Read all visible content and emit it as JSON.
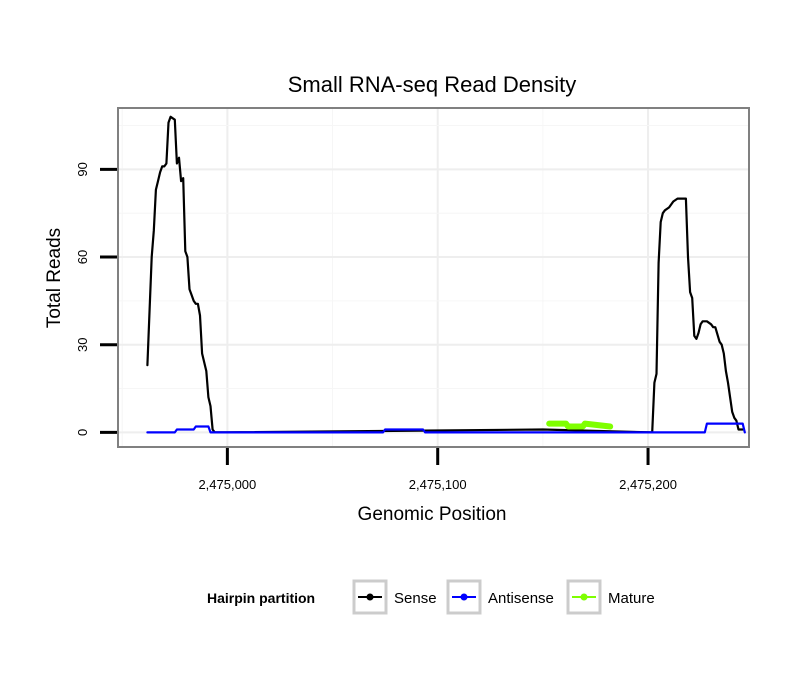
{
  "chart_data": {
    "type": "line",
    "title": "Small RNA-seq Read Density",
    "xlabel": "Genomic Position",
    "ylabel": "Total Reads",
    "xlim": [
      2474948,
      2475248
    ],
    "ylim": [
      -5,
      111
    ],
    "grid": true,
    "x_ticks": [
      {
        "value": 2475000,
        "label": "2,475,000"
      },
      {
        "value": 2475100,
        "label": "2,475,100"
      },
      {
        "value": 2475200,
        "label": "2,475,200"
      }
    ],
    "y_ticks": [
      {
        "value": 0,
        "label": "0"
      },
      {
        "value": 30,
        "label": "30"
      },
      {
        "value": 60,
        "label": "60"
      },
      {
        "value": 90,
        "label": "90"
      }
    ],
    "legend": {
      "title": "Hairpin partition",
      "placement": "bottom"
    },
    "series": [
      {
        "name": "Sense",
        "color": "#000000",
        "x": [
          2474962,
          2474963,
          2474964,
          2474965,
          2474966,
          2474967,
          2474968,
          2474969,
          2474970,
          2474971,
          2474972,
          2474973,
          2474975,
          2474976,
          2474977,
          2474978,
          2474979,
          2474980,
          2474981,
          2474982,
          2474983,
          2474984,
          2474985,
          2474986,
          2474987,
          2474988,
          2474990,
          2474991,
          2474992,
          2474993,
          2474994,
          2474995,
          2474996,
          2474997,
          2474998,
          2474999,
          2475150,
          2475202,
          2475203,
          2475204,
          2475205,
          2475206,
          2475207,
          2475208,
          2475210,
          2475212,
          2475214,
          2475216,
          2475218,
          2475219,
          2475220,
          2475221,
          2475222,
          2475223,
          2475224,
          2475225,
          2475226,
          2475228,
          2475230,
          2475231,
          2475232,
          2475234,
          2475235,
          2475236,
          2475237,
          2475238,
          2475239,
          2475240,
          2475241,
          2475242,
          2475243,
          2475244,
          2475245
        ],
        "values": [
          23,
          42,
          60,
          69,
          83,
          86,
          89,
          91,
          91,
          92,
          106,
          108,
          107,
          92,
          94,
          86,
          87,
          62,
          60,
          49,
          47,
          45,
          44,
          44,
          40,
          27,
          21,
          12,
          9,
          1,
          0,
          0,
          0,
          0,
          0,
          0,
          1,
          0,
          17,
          20,
          58,
          72,
          75,
          76,
          77,
          79,
          80,
          80,
          80,
          60,
          48,
          46,
          33,
          32,
          34,
          37,
          38,
          38,
          37,
          36,
          36,
          31,
          30,
          27,
          21,
          17,
          12,
          7,
          5,
          4,
          1,
          1,
          1
        ]
      },
      {
        "name": "Antisense",
        "color": "#0000ff",
        "x": [
          2474962,
          2474975,
          2474976,
          2474984,
          2474985,
          2474991,
          2474992,
          2475074,
          2475075,
          2475093,
          2475094,
          2475227,
          2475228,
          2475245,
          2475246
        ],
        "values": [
          0,
          0,
          1,
          1,
          2,
          2,
          0,
          0,
          1,
          1,
          0,
          0,
          3,
          3,
          0
        ]
      },
      {
        "name": "Mature",
        "color": "#7fff00",
        "x": [
          2475153,
          2475161,
          2475162,
          2475169,
          2475170,
          2475182
        ],
        "values": [
          3,
          3,
          2,
          2,
          3,
          2
        ]
      }
    ]
  }
}
